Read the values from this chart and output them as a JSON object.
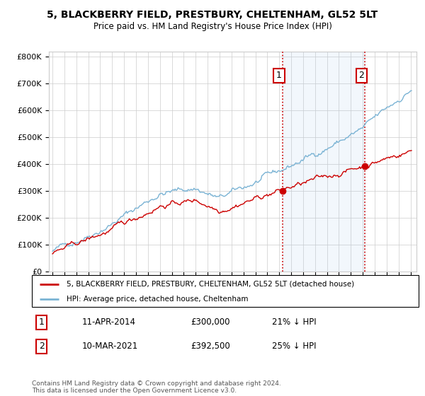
{
  "title_line1": "5, BLACKBERRY FIELD, PRESTBURY, CHELTENHAM, GL52 5LT",
  "title_line2": "Price paid vs. HM Land Registry's House Price Index (HPI)",
  "legend_label1": "5, BLACKBERRY FIELD, PRESTBURY, CHELTENHAM, GL52 5LT (detached house)",
  "legend_label2": "HPI: Average price, detached house, Cheltenham",
  "annotation1_label": "1",
  "annotation1_date": "11-APR-2014",
  "annotation1_price": "£300,000",
  "annotation1_hpi": "21% ↓ HPI",
  "annotation1_year": 2014.28,
  "annotation1_value": 300000,
  "annotation2_label": "2",
  "annotation2_date": "10-MAR-2021",
  "annotation2_price": "£392,500",
  "annotation2_hpi": "25% ↓ HPI",
  "annotation2_year": 2021.19,
  "annotation2_value": 392500,
  "footer": "Contains HM Land Registry data © Crown copyright and database right 2024.\nThis data is licensed under the Open Government Licence v3.0.",
  "ylim": [
    0,
    820000
  ],
  "yticks": [
    0,
    100000,
    200000,
    300000,
    400000,
    500000,
    600000,
    700000,
    800000
  ],
  "ytick_labels": [
    "£0",
    "£100K",
    "£200K",
    "£300K",
    "£400K",
    "£500K",
    "£600K",
    "£700K",
    "£800K"
  ],
  "hpi_color": "#7ab3d4",
  "hpi_fill_color": "#ddeeff",
  "price_color": "#cc0000",
  "vline_color": "#cc0000",
  "background_color": "#ffffff",
  "grid_color": "#cccccc",
  "annotation_box_color": "#cc0000",
  "xlim_left": 1994.7,
  "xlim_right": 2025.5
}
